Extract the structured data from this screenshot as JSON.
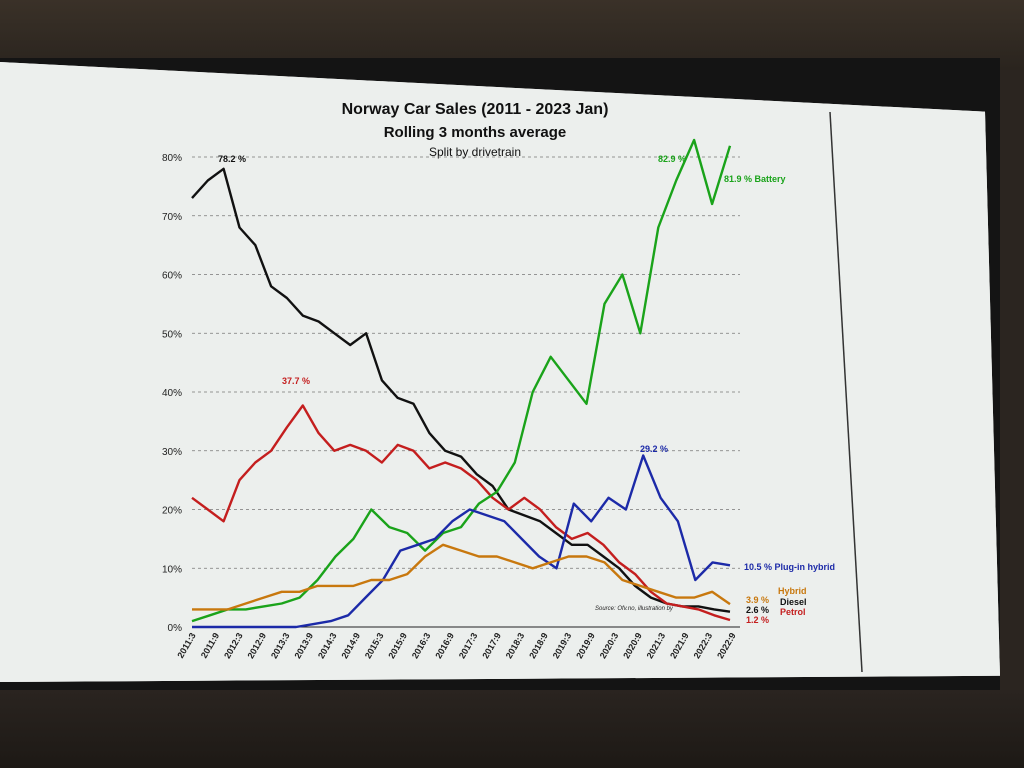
{
  "chart_data": {
    "type": "line",
    "title": "Norway Car Sales (2011 - 2023 Jan)",
    "subtitle": "Rolling 3 months average",
    "subtitle2": "Split by drivetrain",
    "ylim": [
      0,
      80
    ],
    "yticks": [
      "0%",
      "10%",
      "20%",
      "30%",
      "40%",
      "50%",
      "60%",
      "70%",
      "80%"
    ],
    "xticks": [
      "2011:3",
      "2011:9",
      "2012:3",
      "2012:9",
      "2013:3",
      "2013:9",
      "2014:3",
      "2014:9",
      "2015:3",
      "2015:9",
      "2016:3",
      "2016:9",
      "2017:3",
      "2017:9",
      "2018:3",
      "2018:9",
      "2019:3",
      "2019:9",
      "2020:3",
      "2020:9",
      "2021:3",
      "2021:9",
      "2022:3",
      "2022:9"
    ],
    "grid": true,
    "source": "Source: Ofv.no, illustration by",
    "series": [
      {
        "name": "Diesel",
        "color": "#111111",
        "end_label": "2.6 %",
        "values": [
          73,
          76,
          78,
          68,
          65,
          58,
          56,
          53,
          52,
          50,
          48,
          50,
          42,
          39,
          38,
          33,
          30,
          29,
          26,
          24,
          20,
          19,
          18,
          16,
          14,
          14,
          12,
          10,
          7,
          5,
          4,
          3.5,
          3.5,
          3,
          2.6
        ]
      },
      {
        "name": "Petrol",
        "color": "#c41e1e",
        "end_label": "1.2 %",
        "values": [
          22,
          20,
          18,
          25,
          28,
          30,
          34,
          37.7,
          33,
          30,
          31,
          30,
          28,
          31,
          30,
          27,
          28,
          27,
          25,
          22,
          20,
          22,
          20,
          17,
          15,
          16,
          14,
          11,
          9,
          6,
          4,
          3.5,
          3,
          2,
          1.2
        ]
      },
      {
        "name": "Battery",
        "color": "#1aa31a",
        "end_label": "81.9 % Battery",
        "peak_label": "82.9 %",
        "values": [
          1,
          2,
          3,
          3,
          3.5,
          4,
          5,
          8,
          12,
          15,
          20,
          17,
          16,
          13,
          16,
          17,
          21,
          23,
          28,
          40,
          46,
          42,
          38,
          55,
          60,
          50,
          68,
          76,
          82.9,
          72,
          81.9
        ]
      },
      {
        "name": "Plug-in hybrid",
        "color": "#1c2aa8",
        "end_label": "10.5 % Plug-in hybrid",
        "peak_label": "29.2 %",
        "values": [
          0,
          0,
          0,
          0,
          0,
          0,
          0,
          0.5,
          1,
          2,
          5,
          8,
          13,
          14,
          15,
          18,
          20,
          19,
          18,
          15,
          12,
          10,
          21,
          18,
          22,
          20,
          29.2,
          22,
          18,
          8,
          11,
          10.5
        ]
      },
      {
        "name": "Hybrid",
        "color": "#c8780e",
        "end_label": "3.9 %",
        "values": [
          3,
          3,
          3,
          4,
          5,
          6,
          6,
          7,
          7,
          7,
          8,
          8,
          9,
          12,
          14,
          13,
          12,
          12,
          11,
          10,
          11,
          12,
          12,
          11,
          8,
          7,
          6,
          5,
          5,
          6,
          3.9
        ]
      }
    ],
    "annotations": [
      "78.2 %",
      "37.7 %",
      "82.9 %",
      "29.2 %"
    ],
    "legend_labels": [
      "Hybrid",
      "Diesel",
      "Petrol"
    ]
  }
}
